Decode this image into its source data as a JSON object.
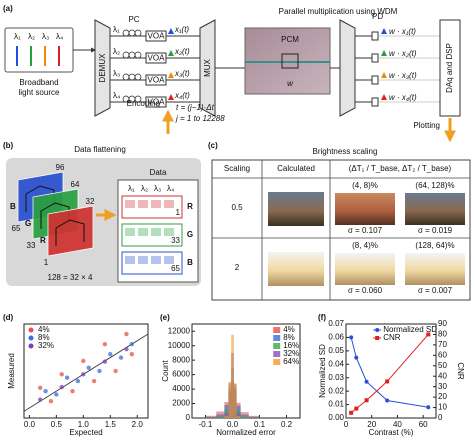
{
  "panel_a": {
    "label": "(a)",
    "title": "Parallel multiplication using WDM",
    "source": [
      "Broadband",
      "light source"
    ],
    "source_lambdas": [
      "λ₁",
      "λ₂",
      "λ₃",
      "λ₄"
    ],
    "colors": [
      "#1f4fe0",
      "#23a03a",
      "#f08a00",
      "#e02020"
    ],
    "demux": "DEMUX",
    "mux": "MUX",
    "pc": "PC",
    "voa": "VOA",
    "pcm": "PCM",
    "weight": "w",
    "pd": "PD",
    "channels": [
      {
        "lambda": "λ₁",
        "input": "x₁(t)",
        "output": "w · x₁(t)"
      },
      {
        "lambda": "λ₂",
        "input": "x₂(t)",
        "output": "w · x₂(t)"
      },
      {
        "lambda": "λ₃",
        "input": "x₃(t)",
        "output": "w · x₃(t)"
      },
      {
        "lambda": "λ₄",
        "input": "x₄(t)",
        "output": "w · x₄(t)"
      }
    ],
    "daq": "DAq and DSP",
    "encoding": "Encoding",
    "time_formula": "t = (j−1)·Δt",
    "index_range": "j = 1 to 12288",
    "plotting": "Plotting"
  },
  "panel_b": {
    "label": "(b)",
    "title": "Data flattening",
    "layers": [
      {
        "name": "B",
        "color": "#2a4fd0"
      },
      {
        "name": "G",
        "color": "#2aa040"
      },
      {
        "name": "R",
        "color": "#d03030"
      }
    ],
    "dims": [
      96,
      64,
      32
    ],
    "heights": [
      65,
      33,
      1
    ],
    "formula": "128 = 32 × 4",
    "data_title": "Data",
    "lambdas": [
      "λ₁",
      "λ₂",
      "λ₃",
      "λ₄"
    ],
    "rows": [
      {
        "name": "R",
        "mark": 1
      },
      {
        "name": "G",
        "mark": 33
      },
      {
        "name": "B",
        "mark": 65
      }
    ]
  },
  "panel_c": {
    "label": "(c)",
    "title": "Brightness scaling",
    "headers": [
      "Scaling",
      "Calculated",
      "(ΔT₁ / T_base, ΔT₂ / T_base)"
    ],
    "rows": [
      {
        "scaling": "0.5",
        "cells": [
          {
            "label": "(4, 8)%",
            "sigma": "σ = 0.107"
          },
          {
            "label": "(64, 128)%",
            "sigma": "σ = 0.019"
          }
        ]
      },
      {
        "scaling": "2",
        "cells": [
          {
            "label": "(8, 4)%",
            "sigma": "σ = 0.060"
          },
          {
            "label": "(128, 64)%",
            "sigma": "σ = 0.007"
          }
        ]
      }
    ]
  },
  "chart_data": [
    {
      "type": "scatter",
      "panel_label": "(d)",
      "x_label": "Expected",
      "y_label": "Measured",
      "xlim": [
        -0.1,
        2.2
      ],
      "ylim": [
        -0.3,
        2.5
      ],
      "xticks": [
        {
          "value": 0,
          "label": "0.0"
        },
        0.5,
        {
          "value": 1,
          "label": "1.0"
        },
        1.5,
        {
          "value": 2,
          "label": "2.0"
        }
      ],
      "legend": "upper left",
      "series": [
        {
          "name": "4%",
          "color": "#e8504a",
          "x": [
            0.2,
            0.4,
            0.6,
            0.8,
            1.0,
            1.2,
            1.4,
            1.6,
            1.8,
            1.9
          ],
          "values": [
            0.6,
            0.2,
            1.0,
            0.5,
            1.4,
            0.8,
            1.9,
            1.1,
            2.2,
            1.6
          ]
        },
        {
          "name": "8%",
          "color": "#3a6fd8",
          "x": [
            0.3,
            0.5,
            0.7,
            0.9,
            1.1,
            1.3,
            1.5,
            1.7,
            1.9
          ],
          "values": [
            0.5,
            0.4,
            0.9,
            0.8,
            1.2,
            1.1,
            1.6,
            1.5,
            1.9
          ]
        },
        {
          "name": "32%",
          "color": "#7a3fb0",
          "x": [
            0.2,
            0.6,
            1.0,
            1.4,
            1.8
          ],
          "values": [
            0.25,
            0.62,
            1.0,
            1.38,
            1.75
          ]
        }
      ]
    },
    {
      "type": "histogram",
      "panel_label": "(e)",
      "x_label": "Normalized error",
      "y_label": "Count",
      "bins": [
        -0.1,
        -0.06,
        -0.03,
        -0.015,
        -0.005,
        0.005,
        0.015,
        0.03,
        0.06,
        0.1
      ],
      "xlim": [
        -0.15,
        0.25
      ],
      "ylim": [
        0,
        13000
      ],
      "xticks": [
        -0.1,
        {
          "value": 0,
          "label": "0.0"
        },
        0.1,
        0.2
      ],
      "yticks": [
        0,
        2000,
        4000,
        6000,
        8000,
        10000,
        12000
      ],
      "legend": "upper right",
      "series": [
        {
          "name": "4%",
          "color": "#e8504a",
          "values": [
            300,
            900,
            2200,
            3500,
            4200,
            3400,
            2100,
            800,
            300
          ]
        },
        {
          "name": "8%",
          "color": "#3a6fd8",
          "values": [
            150,
            500,
            1800,
            3800,
            5200,
            3900,
            1700,
            450,
            150
          ]
        },
        {
          "name": "16%",
          "color": "#3aa84a",
          "values": [
            60,
            250,
            1200,
            4200,
            7000,
            4300,
            1100,
            220,
            50
          ]
        },
        {
          "name": "32%",
          "color": "#8a4fc0",
          "values": [
            20,
            100,
            700,
            4800,
            9000,
            4700,
            650,
            90,
            20
          ]
        },
        {
          "name": "64%",
          "color": "#f29a2a",
          "values": [
            5,
            40,
            300,
            5000,
            11500,
            4800,
            280,
            35,
            5
          ]
        }
      ]
    },
    {
      "type": "line",
      "panel_label": "(f)",
      "x_label": "Contrast (%)",
      "y_label": "Normalized SD",
      "y2_label": "CNR",
      "x": [
        4,
        8,
        16,
        32,
        64
      ],
      "xlim": [
        0,
        70
      ],
      "xticks": [
        0,
        20,
        40,
        60
      ],
      "ylim": [
        0,
        0.07
      ],
      "yticks": [
        {
          "value": 0,
          "label": "0.00"
        },
        0.01,
        0.02,
        0.03,
        0.04,
        0.05,
        0.06,
        0.07
      ],
      "y2lim": [
        0,
        90
      ],
      "y2ticks": [
        0,
        10,
        20,
        30,
        40,
        50,
        60,
        70,
        80,
        90
      ],
      "legend": "upper right",
      "series": [
        {
          "name": "Normalized SD",
          "color": "#2a4fd8",
          "marker": "circle",
          "values": [
            0.06,
            0.045,
            0.027,
            0.013,
            0.008
          ]
        },
        {
          "name": "CNR",
          "color": "#e02020",
          "marker": "square",
          "axis": "y2",
          "values": [
            5,
            9,
            17,
            35,
            80
          ]
        }
      ]
    }
  ]
}
